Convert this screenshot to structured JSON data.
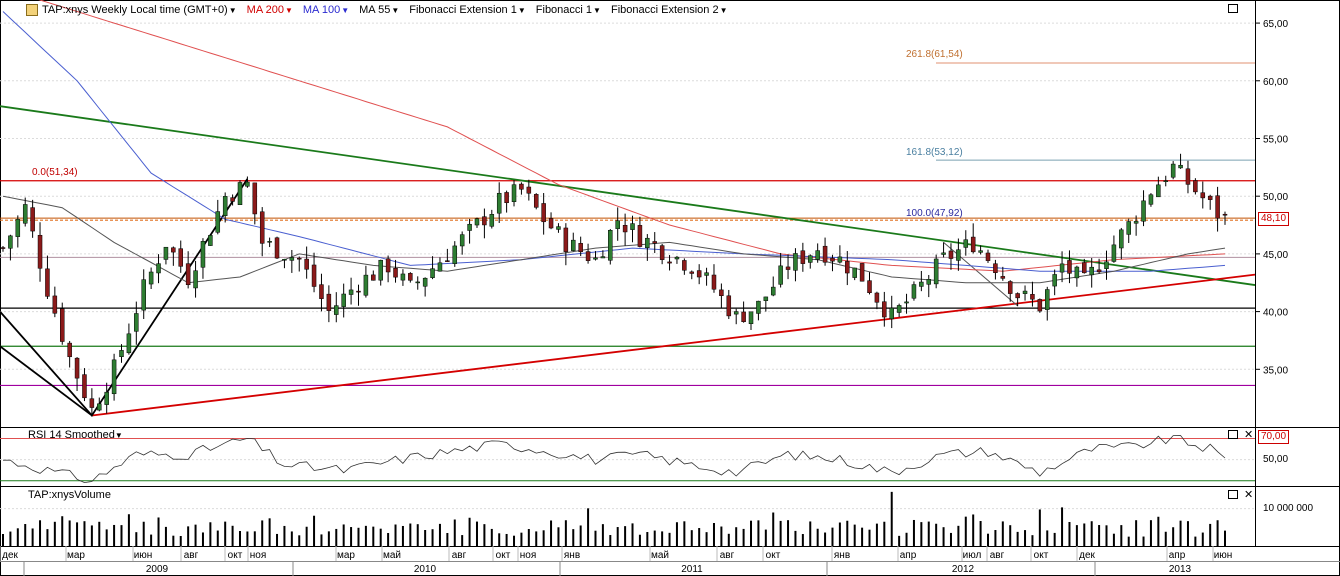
{
  "toolbar": {
    "symbol": "TAP:xnys Weekly Local time (GMT+0)",
    "ma200": "MA 200",
    "ma100": "MA 100",
    "ma55": "MA 55",
    "fibext1": "Fibonacci Extension 1",
    "fib1": "Fibonacci 1",
    "fibext2": "Fibonacci Extension 2"
  },
  "colors": {
    "up": "#2e7d32",
    "down": "#8b1a1a",
    "ma200": "#e05050",
    "ma100": "#4a5fd0",
    "ma55": "#555555",
    "red_line": "#d40000",
    "green_line": "#1a7a1a"
  },
  "price_axis": {
    "ticks": [
      "65,00",
      "60,00",
      "55,00",
      "50,00",
      "45,00",
      "40,00",
      "35,00"
    ],
    "current_price": "48,10"
  },
  "fib_labels": {
    "l0": "0.0(51,34)",
    "l100": "100.0(47,92)",
    "l161": "161.8(53,12)",
    "l261": "261.8(61,54)"
  },
  "rsi": {
    "title": "RSI 14 Smoothed",
    "ticks": [
      "70,00",
      "50,00"
    ],
    "overbought": "70,00"
  },
  "volume": {
    "title": "TAP:xnysVolume",
    "tick": "10 000 000"
  },
  "time_axis": {
    "months": [
      "дек",
      "мар",
      "июн",
      "авг",
      "окт",
      "ноя",
      "мар",
      "май",
      "авг",
      "окт",
      "ноя",
      "янв",
      "май",
      "авг",
      "окт",
      "янв",
      "апр",
      "июл",
      "авг",
      "окт",
      "дек",
      "апр",
      "июн"
    ],
    "years": [
      "2009",
      "2010",
      "2011",
      "2012",
      "2013"
    ]
  },
  "chart_data": {
    "type": "candlestick",
    "title": "TAP:xnys Weekly",
    "x_range": [
      "2008-12",
      "2013-06"
    ],
    "y_range": [
      30,
      67
    ],
    "levels": {
      "fib_0": 51.34,
      "fib_100": 47.92,
      "fib_161_8": 53.12,
      "fib_261_8": 61.54,
      "horizontal": [
        48.1,
        44.7,
        40.3,
        37.0,
        33.6
      ]
    },
    "close_anchors": [
      [
        0,
        45.5
      ],
      [
        3,
        49.0
      ],
      [
        6,
        42.0
      ],
      [
        9,
        36.0
      ],
      [
        12,
        31.5
      ],
      [
        15,
        35.0
      ],
      [
        19,
        42.0
      ],
      [
        22,
        46.0
      ],
      [
        25,
        43.0
      ],
      [
        30,
        50.0
      ],
      [
        33,
        51.0
      ],
      [
        35,
        46.0
      ],
      [
        40,
        44.5
      ],
      [
        44,
        40.0
      ],
      [
        48,
        42.5
      ],
      [
        52,
        44.0
      ],
      [
        55,
        42.0
      ],
      [
        60,
        45.0
      ],
      [
        64,
        47.5
      ],
      [
        67,
        49.5
      ],
      [
        70,
        50.5
      ],
      [
        73,
        48.0
      ],
      [
        76,
        46.0
      ],
      [
        80,
        44.5
      ],
      [
        83,
        48.0
      ],
      [
        86,
        46.5
      ],
      [
        90,
        45.0
      ],
      [
        93,
        44.0
      ],
      [
        96,
        42.0
      ],
      [
        99,
        39.5
      ],
      [
        102,
        40.5
      ],
      [
        106,
        44.0
      ],
      [
        110,
        45.5
      ],
      [
        113,
        44.5
      ],
      [
        116,
        43.0
      ],
      [
        120,
        39.5
      ],
      [
        123,
        41.5
      ],
      [
        127,
        44.5
      ],
      [
        131,
        46.0
      ],
      [
        134,
        44.0
      ],
      [
        137,
        41.5
      ],
      [
        140,
        40.5
      ],
      [
        143,
        44.0
      ],
      [
        146,
        42.5
      ],
      [
        149,
        45.0
      ],
      [
        152,
        47.5
      ],
      [
        155,
        50.5
      ],
      [
        158,
        52.5
      ],
      [
        161,
        50.5
      ],
      [
        164,
        48.5
      ],
      [
        165,
        48.1
      ]
    ],
    "ma200_points": [
      [
        0,
        68.0
      ],
      [
        20,
        64.0
      ],
      [
        40,
        60.0
      ],
      [
        60,
        56.0
      ],
      [
        75,
        51.0
      ],
      [
        90,
        47.5
      ],
      [
        105,
        45.0
      ],
      [
        120,
        44.0
      ],
      [
        135,
        43.5
      ],
      [
        150,
        44.5
      ],
      [
        165,
        45.0
      ]
    ],
    "ma100_points": [
      [
        0,
        66.0
      ],
      [
        10,
        60.0
      ],
      [
        20,
        52.0
      ],
      [
        30,
        48.0
      ],
      [
        40,
        46.5
      ],
      [
        55,
        44.0
      ],
      [
        70,
        44.5
      ],
      [
        85,
        45.5
      ],
      [
        100,
        45.0
      ],
      [
        120,
        44.5
      ],
      [
        140,
        43.5
      ],
      [
        155,
        43.5
      ],
      [
        165,
        44.0
      ]
    ],
    "ma55_points": [
      [
        0,
        50.0
      ],
      [
        8,
        49.0
      ],
      [
        15,
        46.0
      ],
      [
        25,
        42.5
      ],
      [
        32,
        43.0
      ],
      [
        40,
        45.0
      ],
      [
        50,
        44.0
      ],
      [
        60,
        43.5
      ],
      [
        70,
        44.5
      ],
      [
        80,
        45.5
      ],
      [
        90,
        46.0
      ],
      [
        100,
        45.0
      ],
      [
        110,
        44.5
      ],
      [
        120,
        43.0
      ],
      [
        130,
        42.5
      ],
      [
        140,
        42.5
      ],
      [
        150,
        43.5
      ],
      [
        160,
        45.0
      ],
      [
        165,
        45.5
      ]
    ],
    "rsi_range": [
      25,
      80
    ],
    "rsi_anchors": [
      [
        0,
        50
      ],
      [
        6,
        40
      ],
      [
        12,
        30
      ],
      [
        18,
        55
      ],
      [
        25,
        55
      ],
      [
        33,
        70
      ],
      [
        38,
        45
      ],
      [
        46,
        40
      ],
      [
        55,
        52
      ],
      [
        67,
        65
      ],
      [
        72,
        60
      ],
      [
        80,
        50
      ],
      [
        86,
        55
      ],
      [
        93,
        45
      ],
      [
        99,
        38
      ],
      [
        106,
        55
      ],
      [
        113,
        50
      ],
      [
        120,
        38
      ],
      [
        127,
        55
      ],
      [
        133,
        58
      ],
      [
        140,
        38
      ],
      [
        147,
        60
      ],
      [
        152,
        62
      ],
      [
        158,
        70
      ],
      [
        163,
        60
      ],
      [
        165,
        50
      ]
    ],
    "volume_unit": "10 000 000",
    "volume_max": 15000000
  }
}
